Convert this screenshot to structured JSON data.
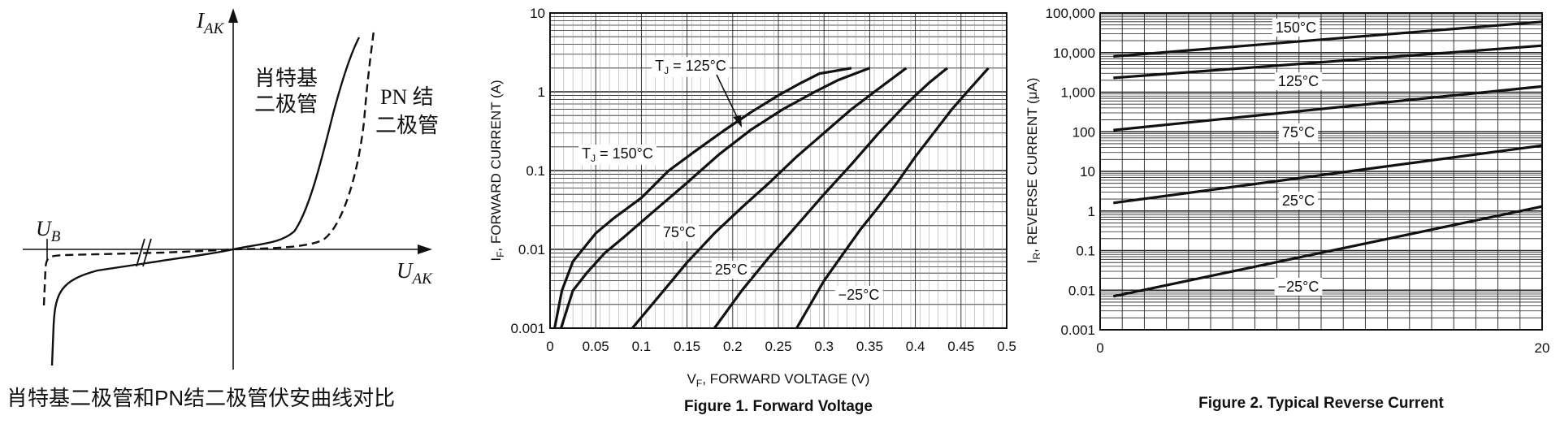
{
  "panel1": {
    "caption": "肖特基二极管和PN结二极管伏安曲线对比",
    "y_axis_var": "I",
    "y_axis_sub": "AK",
    "x_axis_var": "U",
    "x_axis_sub": "AK",
    "ub_var": "U",
    "ub_sub": "B",
    "schottky_label_1": "肖特基",
    "schottky_label_2": "二极管",
    "pn_label_1": "PN 结",
    "pn_label_2": "二极管"
  },
  "chart_data": [
    {
      "type": "line",
      "title": "",
      "caption": "Figure 1. Forward Voltage",
      "xlabel": "V",
      "xlabel_sub": "F",
      "xlabel_rest": ", FORWARD VOLTAGE (V)",
      "ylabel": "I",
      "ylabel_sub": "F",
      "ylabel_rest": ", FORWARD CURRENT (A)",
      "xlim": [
        0,
        0.5
      ],
      "ylim": [
        0.001,
        10
      ],
      "yscale": "log",
      "grid": true,
      "x_ticks": [
        "0",
        "0.05",
        "0.1",
        "0.15",
        "0.2",
        "0.25",
        "0.3",
        "0.35",
        "0.4",
        "0.45",
        "0.5"
      ],
      "y_ticks": [
        "0.001",
        "0.01",
        "0.1",
        "1",
        "10"
      ],
      "series": [
        {
          "name": "T_J = 150°C",
          "label": {
            "pre": "T",
            "sub": "J",
            "post": " = 150°C"
          },
          "x": [
            0.005,
            0.013,
            0.025,
            0.05,
            0.07,
            0.1,
            0.13,
            0.16,
            0.19,
            0.22,
            0.25,
            0.275,
            0.295,
            0.33
          ],
          "y": [
            0.001,
            0.003,
            0.007,
            0.016,
            0.025,
            0.045,
            0.1,
            0.18,
            0.32,
            0.55,
            0.9,
            1.3,
            1.7,
            2
          ]
        },
        {
          "name": "T_J = 125°C",
          "label": {
            "pre": "T",
            "sub": "J",
            "post": " = 125°C"
          },
          "x": [
            0.012,
            0.025,
            0.04,
            0.06,
            0.08,
            0.11,
            0.15,
            0.185,
            0.22,
            0.255,
            0.29,
            0.315,
            0.35
          ],
          "y": [
            0.001,
            0.003,
            0.005,
            0.009,
            0.014,
            0.028,
            0.07,
            0.16,
            0.33,
            0.6,
            1,
            1.4,
            2
          ]
        },
        {
          "name": "75°C",
          "label": {
            "pre": "",
            "sub": "",
            "post": "75°C"
          },
          "x": [
            0.09,
            0.12,
            0.15,
            0.18,
            0.21,
            0.24,
            0.27,
            0.3,
            0.33,
            0.36,
            0.39
          ],
          "y": [
            0.001,
            0.0026,
            0.0068,
            0.016,
            0.034,
            0.07,
            0.15,
            0.3,
            0.6,
            1.1,
            2
          ]
        },
        {
          "name": "25°C",
          "label": {
            "pre": "",
            "sub": "",
            "post": "25°C"
          },
          "x": [
            0.18,
            0.21,
            0.24,
            0.27,
            0.3,
            0.33,
            0.36,
            0.39,
            0.415,
            0.435
          ],
          "y": [
            0.001,
            0.003,
            0.008,
            0.02,
            0.05,
            0.12,
            0.3,
            0.7,
            1.3,
            2
          ]
        },
        {
          "name": "−25°C",
          "label": {
            "pre": "",
            "sub": "",
            "post": "−25°C"
          },
          "x": [
            0.27,
            0.3,
            0.32,
            0.34,
            0.36,
            0.38,
            0.4,
            0.42,
            0.44,
            0.46,
            0.48
          ],
          "y": [
            0.001,
            0.004,
            0.0085,
            0.018,
            0.035,
            0.07,
            0.15,
            0.3,
            0.6,
            1.1,
            2
          ]
        }
      ]
    },
    {
      "type": "line",
      "title": "",
      "caption": "Figure 2. Typical Reverse Current",
      "xlabel": "",
      "ylabel": "I",
      "ylabel_sub": "R",
      "ylabel_rest": ", REVERSE CURRENT (μA)",
      "xlim": [
        0,
        20
      ],
      "ylim": [
        0.001,
        100000
      ],
      "yscale": "log",
      "grid": true,
      "x_ticks": [
        "0",
        "20"
      ],
      "y_ticks": [
        "0.001",
        "0.01",
        "0.1",
        "1",
        "10",
        "100",
        "1,000",
        "10,000",
        "100,000"
      ],
      "series": [
        {
          "name": "150°C",
          "x": [
            0.6,
            20
          ],
          "y": [
            8000,
            60000
          ]
        },
        {
          "name": "125°C",
          "x": [
            0.6,
            20
          ],
          "y": [
            2300,
            15000
          ]
        },
        {
          "name": "75°C",
          "x": [
            0.6,
            20
          ],
          "y": [
            110,
            1400
          ]
        },
        {
          "name": "25°C",
          "x": [
            0.6,
            20
          ],
          "y": [
            1.6,
            45
          ]
        },
        {
          "name": "−25°C",
          "x": [
            0.6,
            20
          ],
          "y": [
            0.007,
            1.3
          ]
        }
      ]
    }
  ]
}
